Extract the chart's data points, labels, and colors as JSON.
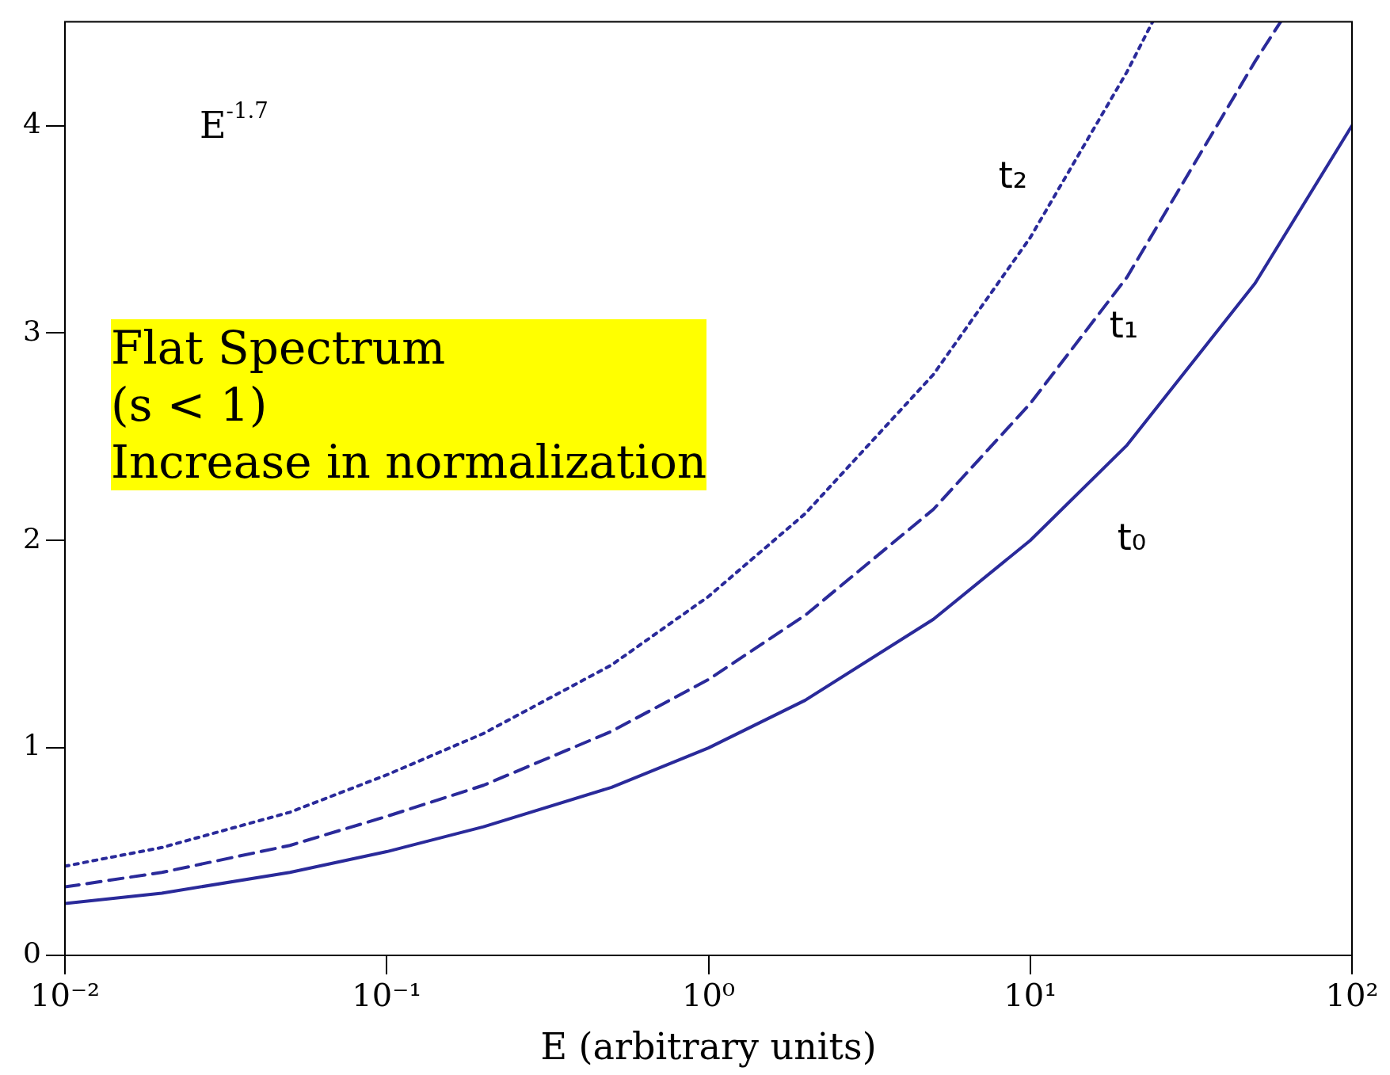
{
  "chart_data": {
    "type": "line",
    "xlabel": "E (arbitrary units)",
    "log": "x",
    "grid": false,
    "legend": false,
    "marker": "none",
    "xlim": [
      0.01,
      100
    ],
    "ylim": [
      0,
      4.5
    ],
    "xticks": [
      {
        "value": 0.01,
        "label": "10⁻²"
      },
      {
        "value": 0.1,
        "label": "10⁻¹"
      },
      {
        "value": 1,
        "label": "10⁰"
      },
      {
        "value": 10,
        "label": "10¹"
      },
      {
        "value": 100,
        "label": "10²"
      }
    ],
    "yticks": [
      0,
      1,
      2,
      3,
      4
    ],
    "series": [
      {
        "name": "t₀",
        "color": "#2a2a9a",
        "line_style": "solid",
        "x": [
          0.01,
          0.02,
          0.05,
          0.1,
          0.2,
          0.5,
          1,
          2,
          5,
          10,
          20,
          50,
          100
        ],
        "values": [
          0.25,
          0.3,
          0.4,
          0.5,
          0.62,
          0.81,
          1.0,
          1.23,
          1.62,
          2.0,
          2.46,
          3.24,
          4.0
        ]
      },
      {
        "name": "t₁",
        "color": "#2a2a9a",
        "line_style": "dashed",
        "x": [
          0.01,
          0.02,
          0.05,
          0.1,
          0.2,
          0.5,
          1,
          2,
          5,
          10,
          20,
          50,
          60
        ],
        "values": [
          0.33,
          0.4,
          0.53,
          0.67,
          0.82,
          1.08,
          1.33,
          1.64,
          2.15,
          2.66,
          3.27,
          4.31,
          4.5
        ]
      },
      {
        "name": "t₂",
        "color": "#2a2a9a",
        "line_style": "dotted",
        "x": [
          0.01,
          0.02,
          0.05,
          0.1,
          0.2,
          0.5,
          1,
          2,
          5,
          10,
          20,
          24
        ],
        "values": [
          0.43,
          0.52,
          0.69,
          0.87,
          1.07,
          1.4,
          1.73,
          2.13,
          2.8,
          3.46,
          4.26,
          4.5
        ]
      }
    ],
    "annotations": [
      "E$^{-1.7}$",
      "Flat  Spectrum\n(s < 1)\nIncrease in normalization"
    ]
  }
}
